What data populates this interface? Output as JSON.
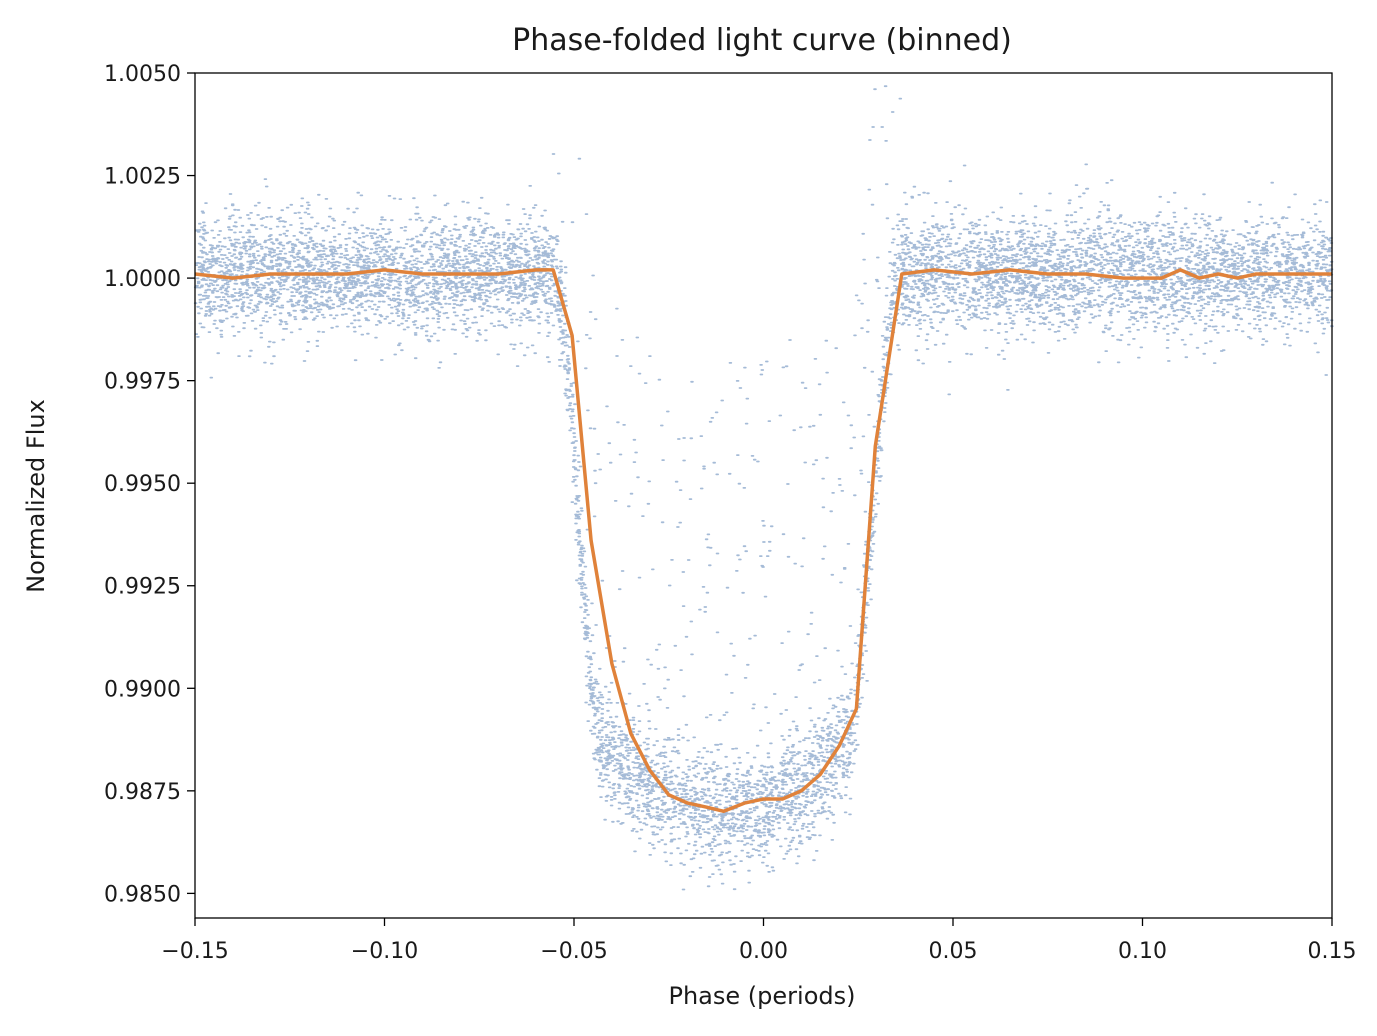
{
  "chart_data": {
    "type": "scatter",
    "title": "Phase-folded light curve (binned)",
    "xlabel": "Phase (periods)",
    "ylabel": "Normalized Flux",
    "xlim": [
      -0.15,
      0.15
    ],
    "ylim": [
      0.9844,
      1.005
    ],
    "grid": false,
    "x_ticks": [
      -0.15,
      -0.1,
      -0.05,
      0.0,
      0.05,
      0.1,
      0.15
    ],
    "x_tick_labels": [
      "−0.15",
      "−0.10",
      "−0.05",
      "0.00",
      "0.05",
      "0.10",
      "0.15"
    ],
    "y_ticks": [
      0.985,
      0.9875,
      0.99,
      0.9925,
      0.995,
      0.9975,
      1.0,
      1.0025,
      1.005
    ],
    "y_tick_labels": [
      "0.9850",
      "0.9875",
      "0.9900",
      "0.9925",
      "0.9950",
      "0.9975",
      "1.0000",
      "1.0025",
      "1.0050"
    ],
    "series": [
      {
        "kind": "scatter",
        "color": "#4c78b0",
        "description_of_points": "raw flux samples",
        "model": {
          "transit_center": -0.0105,
          "ingress_start": -0.0555,
          "ingress_end": -0.043,
          "egress_start": 0.022,
          "egress_end": 0.0365,
          "baseline": 1.0001,
          "depth_min": 0.987,
          "scatter_sigma": 0.0007
        }
      },
      {
        "kind": "line",
        "color": "#e0823a",
        "x": [
          -0.15,
          -0.14,
          -0.13,
          -0.12,
          -0.11,
          -0.1,
          -0.09,
          -0.08,
          -0.07,
          -0.06,
          -0.0555,
          -0.0505,
          -0.0455,
          -0.04,
          -0.035,
          -0.03,
          -0.025,
          -0.02,
          -0.015,
          -0.0105,
          -0.005,
          0.0,
          0.005,
          0.01,
          0.015,
          0.02,
          0.0245,
          0.0295,
          0.0365,
          0.045,
          0.055,
          0.065,
          0.075,
          0.085,
          0.095,
          0.105,
          0.11,
          0.115,
          0.12,
          0.125,
          0.13,
          0.14,
          0.15
        ],
        "y": [
          1.0001,
          1.0,
          1.0001,
          1.0001,
          1.0001,
          1.0002,
          1.0001,
          1.0001,
          1.0001,
          1.0002,
          1.0002,
          0.9986,
          0.9936,
          0.9906,
          0.9889,
          0.988,
          0.9874,
          0.9872,
          0.9871,
          0.987,
          0.9872,
          0.9873,
          0.9873,
          0.9875,
          0.9879,
          0.9886,
          0.9895,
          0.9959,
          1.0001,
          1.0002,
          1.0001,
          1.0002,
          1.0001,
          1.0001,
          1.0,
          1.0,
          1.0002,
          1.0,
          1.0001,
          1.0,
          1.0001,
          1.0001,
          1.0001
        ]
      }
    ]
  }
}
